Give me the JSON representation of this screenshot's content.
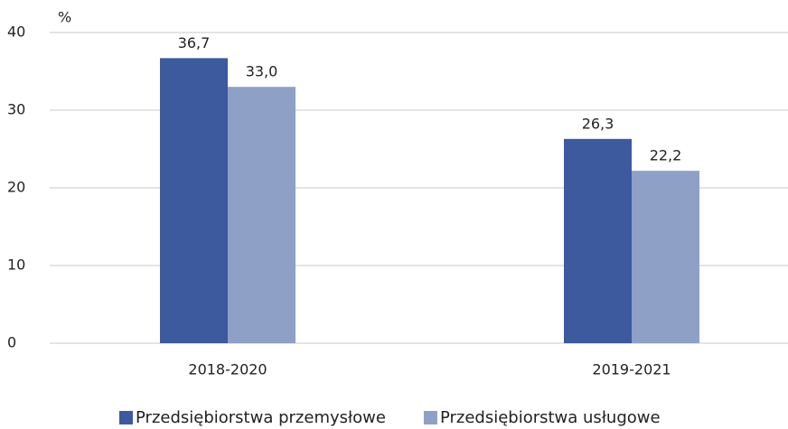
{
  "chart_data": {
    "type": "bar",
    "y_label": "%",
    "categories": [
      "2018-2020",
      "2019-2021"
    ],
    "series": [
      {
        "name": "Przedsiębiorstwa przemysłowe",
        "color": "#3d5a9e",
        "values": [
          36.7,
          26.3
        ],
        "value_labels": [
          "36,7",
          "26,3"
        ]
      },
      {
        "name": "Przedsiębiorstwa usługowe",
        "color": "#8fa0c6",
        "values": [
          33.0,
          22.2
        ],
        "value_labels": [
          "33,0",
          "22,2"
        ]
      }
    ],
    "ylim": [
      0,
      40
    ],
    "yticks": [
      0,
      10,
      20,
      30,
      40
    ],
    "grid": true,
    "legend": "bottom"
  }
}
